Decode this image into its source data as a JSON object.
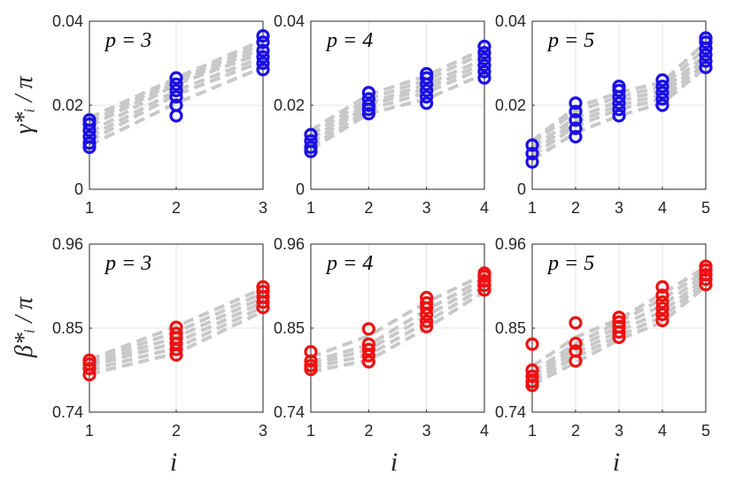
{
  "ylabels": {
    "gamma": "γ*ᵢ / π",
    "beta": "β*ᵢ / π"
  },
  "xlabel": "i",
  "colors": {
    "gamma": "#1a0fe6",
    "beta": "#ee1111",
    "trend": "#c8c8c8",
    "grid": "#e6e6e6",
    "axis": "#262626"
  },
  "chart_data": [
    {
      "type": "scatter",
      "row": "gamma",
      "title": "p = 3",
      "xlim": [
        1,
        3
      ],
      "ylim": [
        0,
        0.04
      ],
      "xticks": [
        "1",
        "2",
        "3"
      ],
      "yticks": [
        "0",
        "0.02",
        "0.04"
      ],
      "points": [
        [
          1,
          0.01
        ],
        [
          1,
          0.011
        ],
        [
          1,
          0.0125
        ],
        [
          1,
          0.014
        ],
        [
          1,
          0.0155
        ],
        [
          1,
          0.0165
        ],
        [
          2,
          0.0175
        ],
        [
          2,
          0.02
        ],
        [
          2,
          0.022
        ],
        [
          2,
          0.0235
        ],
        [
          2,
          0.025
        ],
        [
          2,
          0.0265
        ],
        [
          3,
          0.0285
        ],
        [
          3,
          0.03
        ],
        [
          3,
          0.0315
        ],
        [
          3,
          0.033
        ],
        [
          3,
          0.035
        ],
        [
          3,
          0.0365
        ]
      ],
      "trend_lines": [
        [
          0.0105,
          0.0205,
          0.029
        ],
        [
          0.0115,
          0.0225,
          0.0305
        ],
        [
          0.0125,
          0.0235,
          0.0315
        ],
        [
          0.0135,
          0.025,
          0.0325
        ],
        [
          0.015,
          0.0255,
          0.0335
        ],
        [
          0.016,
          0.026,
          0.0345
        ],
        [
          0.017,
          0.0265,
          0.0355
        ]
      ]
    },
    {
      "type": "scatter",
      "row": "gamma",
      "title": "p = 4",
      "xlim": [
        1,
        4
      ],
      "ylim": [
        0,
        0.04
      ],
      "xticks": [
        "1",
        "2",
        "3",
        "4"
      ],
      "yticks": [
        "0",
        "0.02",
        "0.04"
      ],
      "points": [
        [
          1,
          0.009
        ],
        [
          1,
          0.01
        ],
        [
          1,
          0.0115
        ],
        [
          1,
          0.013
        ],
        [
          2,
          0.018
        ],
        [
          2,
          0.019
        ],
        [
          2,
          0.02
        ],
        [
          2,
          0.0215
        ],
        [
          2,
          0.023
        ],
        [
          3,
          0.0205
        ],
        [
          3,
          0.022
        ],
        [
          3,
          0.0235
        ],
        [
          3,
          0.025
        ],
        [
          3,
          0.0265
        ],
        [
          3,
          0.0275
        ],
        [
          4,
          0.0265
        ],
        [
          4,
          0.028
        ],
        [
          4,
          0.0295
        ],
        [
          4,
          0.031
        ],
        [
          4,
          0.0325
        ],
        [
          4,
          0.034
        ]
      ],
      "trend_lines": [
        [
          0.0095,
          0.018,
          0.0215,
          0.0275
        ],
        [
          0.01,
          0.019,
          0.023,
          0.029
        ],
        [
          0.011,
          0.02,
          0.024,
          0.03
        ],
        [
          0.012,
          0.0205,
          0.025,
          0.031
        ],
        [
          0.013,
          0.0215,
          0.026,
          0.0325
        ],
        [
          0.014,
          0.0225,
          0.027,
          0.0335
        ]
      ]
    },
    {
      "type": "scatter",
      "row": "gamma",
      "title": "p = 5",
      "xlim": [
        1,
        5
      ],
      "ylim": [
        0,
        0.04
      ],
      "xticks": [
        "1",
        "2",
        "3",
        "4",
        "5"
      ],
      "yticks": [
        "0",
        "0.02",
        "0.04"
      ],
      "points": [
        [
          1,
          0.0065
        ],
        [
          1,
          0.0085
        ],
        [
          1,
          0.0105
        ],
        [
          2,
          0.0125
        ],
        [
          2,
          0.0145
        ],
        [
          2,
          0.0165
        ],
        [
          2,
          0.0185
        ],
        [
          2,
          0.0205
        ],
        [
          3,
          0.0175
        ],
        [
          3,
          0.019
        ],
        [
          3,
          0.0205
        ],
        [
          3,
          0.022
        ],
        [
          3,
          0.0235
        ],
        [
          3,
          0.0245
        ],
        [
          4,
          0.02
        ],
        [
          4,
          0.0215
        ],
        [
          4,
          0.023
        ],
        [
          4,
          0.0245
        ],
        [
          4,
          0.026
        ],
        [
          5,
          0.029
        ],
        [
          5,
          0.0305
        ],
        [
          5,
          0.032
        ],
        [
          5,
          0.0335
        ],
        [
          5,
          0.035
        ],
        [
          5,
          0.036
        ]
      ],
      "trend_lines": [
        [
          0.007,
          0.0135,
          0.0175,
          0.0205,
          0.029
        ],
        [
          0.008,
          0.015,
          0.019,
          0.0215,
          0.03
        ],
        [
          0.009,
          0.016,
          0.02,
          0.0225,
          0.031
        ],
        [
          0.01,
          0.017,
          0.021,
          0.0235,
          0.032
        ],
        [
          0.011,
          0.0185,
          0.022,
          0.0245,
          0.0335
        ],
        [
          0.0115,
          0.0195,
          0.023,
          0.0255,
          0.035
        ]
      ]
    },
    {
      "type": "scatter",
      "row": "beta",
      "title": "p = 3",
      "xlim": [
        1,
        3
      ],
      "ylim": [
        0.74,
        0.96
      ],
      "xticks": [
        "1",
        "2",
        "3"
      ],
      "yticks": [
        "0.74",
        "0.85",
        "0.96"
      ],
      "points": [
        [
          1,
          0.789
        ],
        [
          1,
          0.797
        ],
        [
          1,
          0.803
        ],
        [
          1,
          0.808
        ],
        [
          2,
          0.815
        ],
        [
          2,
          0.822
        ],
        [
          2,
          0.83
        ],
        [
          2,
          0.837
        ],
        [
          2,
          0.843
        ],
        [
          2,
          0.851
        ],
        [
          3,
          0.877
        ],
        [
          3,
          0.884
        ],
        [
          3,
          0.891
        ],
        [
          3,
          0.898
        ],
        [
          3,
          0.904
        ]
      ],
      "trend_lines": [
        [
          0.79,
          0.817,
          0.872
        ],
        [
          0.795,
          0.824,
          0.878
        ],
        [
          0.8,
          0.831,
          0.884
        ],
        [
          0.803,
          0.838,
          0.89
        ],
        [
          0.806,
          0.845,
          0.896
        ],
        [
          0.809,
          0.852,
          0.902
        ]
      ]
    },
    {
      "type": "scatter",
      "row": "beta",
      "title": "p = 4",
      "xlim": [
        1,
        4
      ],
      "ylim": [
        0.74,
        0.96
      ],
      "xticks": [
        "1",
        "2",
        "3",
        "4"
      ],
      "yticks": [
        "0.74",
        "0.85",
        "0.96"
      ],
      "points": [
        [
          1,
          0.796
        ],
        [
          1,
          0.801
        ],
        [
          1,
          0.807
        ],
        [
          1,
          0.819
        ],
        [
          2,
          0.806
        ],
        [
          2,
          0.814
        ],
        [
          2,
          0.822
        ],
        [
          2,
          0.829
        ],
        [
          2,
          0.849
        ],
        [
          3,
          0.852
        ],
        [
          3,
          0.859
        ],
        [
          3,
          0.868
        ],
        [
          3,
          0.876
        ],
        [
          3,
          0.883
        ],
        [
          3,
          0.89
        ],
        [
          4,
          0.9
        ],
        [
          4,
          0.906
        ],
        [
          4,
          0.912
        ],
        [
          4,
          0.918
        ],
        [
          4,
          0.922
        ]
      ],
      "trend_lines": [
        [
          0.793,
          0.808,
          0.85,
          0.898
        ],
        [
          0.798,
          0.815,
          0.858,
          0.904
        ],
        [
          0.802,
          0.822,
          0.866,
          0.91
        ],
        [
          0.806,
          0.828,
          0.874,
          0.915
        ],
        [
          0.812,
          0.84,
          0.884,
          0.92
        ]
      ]
    },
    {
      "type": "scatter",
      "row": "beta",
      "title": "p = 5",
      "xlim": [
        1,
        5
      ],
      "ylim": [
        0.74,
        0.96
      ],
      "xticks": [
        "1",
        "2",
        "3",
        "4",
        "5"
      ],
      "yticks": [
        "0.74",
        "0.85",
        "0.96"
      ],
      "points": [
        [
          1,
          0.775
        ],
        [
          1,
          0.78
        ],
        [
          1,
          0.787
        ],
        [
          1,
          0.795
        ],
        [
          1,
          0.829
        ],
        [
          2,
          0.807
        ],
        [
          2,
          0.82
        ],
        [
          2,
          0.83
        ],
        [
          2,
          0.857
        ],
        [
          3,
          0.838
        ],
        [
          3,
          0.845
        ],
        [
          3,
          0.852
        ],
        [
          3,
          0.858
        ],
        [
          3,
          0.864
        ],
        [
          4,
          0.86
        ],
        [
          4,
          0.868
        ],
        [
          4,
          0.876
        ],
        [
          4,
          0.884
        ],
        [
          4,
          0.893
        ],
        [
          4,
          0.904
        ],
        [
          5,
          0.907
        ],
        [
          5,
          0.914
        ],
        [
          5,
          0.92
        ],
        [
          5,
          0.926
        ],
        [
          5,
          0.931
        ]
      ],
      "trend_lines": [
        [
          0.776,
          0.805,
          0.835,
          0.858,
          0.905
        ],
        [
          0.78,
          0.812,
          0.84,
          0.865,
          0.91
        ],
        [
          0.784,
          0.818,
          0.846,
          0.872,
          0.915
        ],
        [
          0.788,
          0.824,
          0.852,
          0.88,
          0.92
        ],
        [
          0.792,
          0.83,
          0.858,
          0.888,
          0.925
        ],
        [
          0.8,
          0.838,
          0.862,
          0.895,
          0.93
        ]
      ]
    }
  ]
}
